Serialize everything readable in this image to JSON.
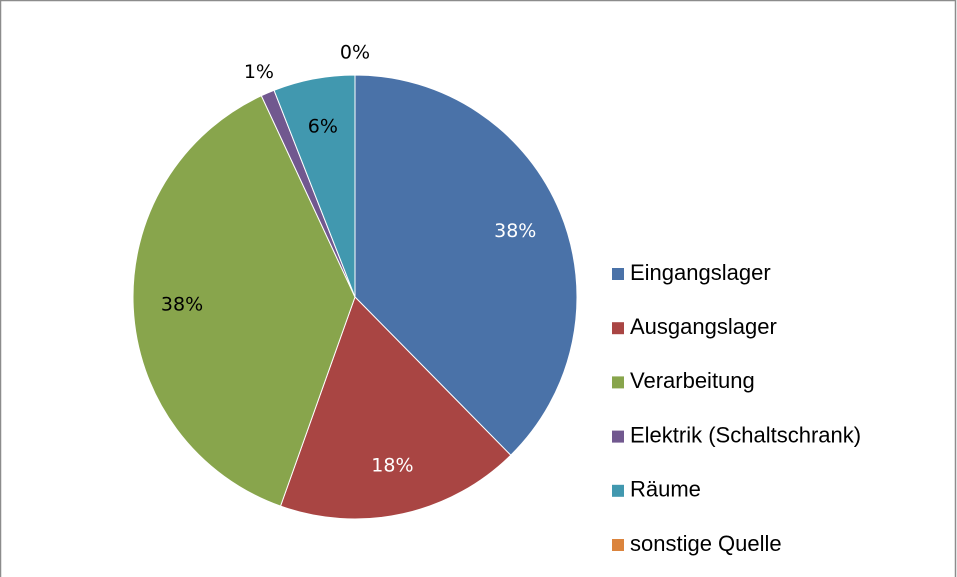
{
  "chart_data": {
    "type": "pie",
    "categories": [
      "Eingangslager",
      "Ausgangslager",
      "Verarbeitung",
      "Elektrik (Schaltschrank)",
      "Räume",
      "sonstige Quelle"
    ],
    "values": [
      38,
      18,
      38,
      1,
      6,
      0
    ],
    "value_labels": [
      "38%",
      "18%",
      "38%",
      "1%",
      "6%",
      "0%"
    ],
    "colors": [
      "#4a72a8",
      "#a94543",
      "#88a54c",
      "#71588f",
      "#4198af",
      "#db843d"
    ],
    "label_colors": [
      "#ffffff",
      "#ffffff",
      "#000000",
      "#000000",
      "#000000",
      "#000000"
    ],
    "legend": "right"
  }
}
